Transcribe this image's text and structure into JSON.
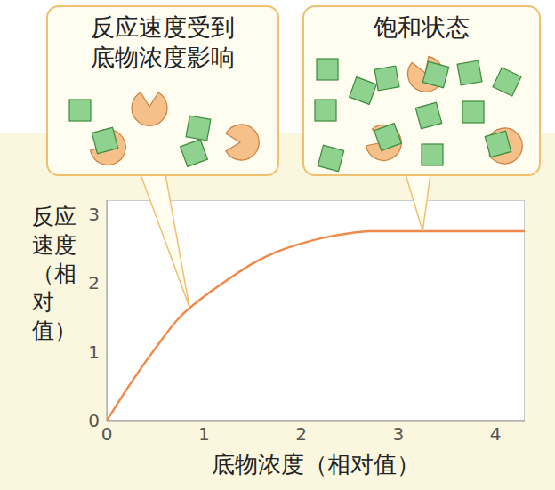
{
  "chart_data": {
    "type": "line",
    "x_label": "底物浓度（相对值）",
    "y_label": "反应速度（相对值）",
    "x": [
      0,
      0.25,
      0.5,
      0.75,
      1,
      1.25,
      1.5,
      1.75,
      2,
      2.25,
      2.5,
      2.7,
      3,
      3.5,
      4,
      4.3
    ],
    "values": [
      0,
      0.55,
      1.05,
      1.5,
      1.8,
      2.05,
      2.28,
      2.45,
      2.57,
      2.66,
      2.72,
      2.75,
      2.75,
      2.75,
      2.75,
      2.75
    ],
    "color": "#f08a4b",
    "xlim": [
      0,
      4.3
    ],
    "ylim": [
      0,
      3.2
    ],
    "xticks": [
      0,
      1,
      2,
      3,
      4
    ],
    "yticks": [
      0,
      1,
      2,
      3
    ],
    "grid": false,
    "annotations": [
      {
        "lines": [
          "反应速度受到",
          "底物浓度影响"
        ],
        "x": 0.85,
        "y": 1.65
      },
      {
        "lines": [
          "饱和状态"
        ],
        "x": 3.25,
        "y": 2.75
      }
    ]
  }
}
